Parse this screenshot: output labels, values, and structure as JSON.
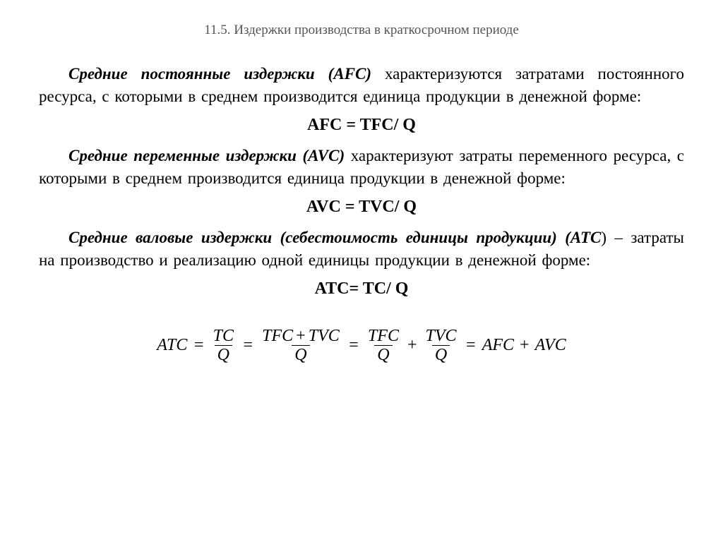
{
  "header": "11.5. Издержки производства в краткосрочном периоде",
  "afc": {
    "term": "Средние постоянные издержки (AFC)",
    "desc_after": " характеризуются затратами постоянного  ресурса,  с  которыми  в  среднем  производится единица продукции в денежной форме:",
    "formula": "AFC = TFC/ Q"
  },
  "avc": {
    "term": "Средние переменные издержки (AVC)",
    "desc_after": " характеризуют затраты переменного  ресурса,  с  которыми  в  среднем  производится единица продукции в денежной форме:",
    "formula": "AVC = TVC/ Q"
  },
  "atc": {
    "term": "Средние валовые издержки (себестоимость единицы продукции) (ATC",
    "desc_after": ") – затраты на производство и реализацию одной единицы продукции  в денежной форме:",
    "formula": "ATC= TC/ Q"
  },
  "eq": {
    "lhs": "ATC",
    "f1n": "TC",
    "f1d": "Q",
    "f2n1": "TFC",
    "f2n2": "TVC",
    "f2d": "Q",
    "f3n": "TFC",
    "f3d": "Q",
    "f4n": "TVC",
    "f4d": "Q",
    "rhs1": "AFC",
    "rhs2": "AVC",
    "eqs": "=",
    "plus": "+"
  }
}
